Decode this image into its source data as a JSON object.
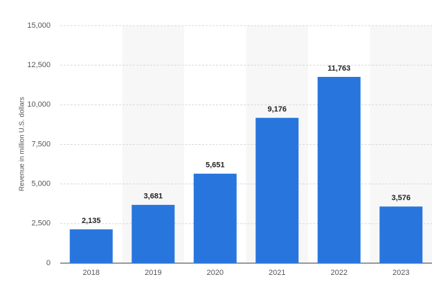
{
  "chart_data": {
    "type": "bar",
    "y_label": "Revenue in million U.S. dollars",
    "categories": [
      "2018",
      "2019",
      "2020",
      "2021",
      "2022",
      "2023"
    ],
    "values": [
      2135,
      3681,
      5651,
      9176,
      11763,
      3576
    ],
    "value_labels": [
      "2,135",
      "3,681",
      "5,651",
      "9,176",
      "11,763",
      "3,576"
    ],
    "color": "#2876dd",
    "ylim": [
      0,
      15000
    ],
    "yticks": [
      0,
      {
        "value": 2500,
        "label": "2,500"
      },
      {
        "value": 5000,
        "label": "5,000"
      },
      {
        "value": 7500,
        "label": "7,500"
      },
      {
        "value": 10000,
        "label": "10,000"
      },
      {
        "value": 12500,
        "label": "12,500"
      },
      {
        "value": 15000,
        "label": "15,000"
      }
    ],
    "grid": true
  }
}
